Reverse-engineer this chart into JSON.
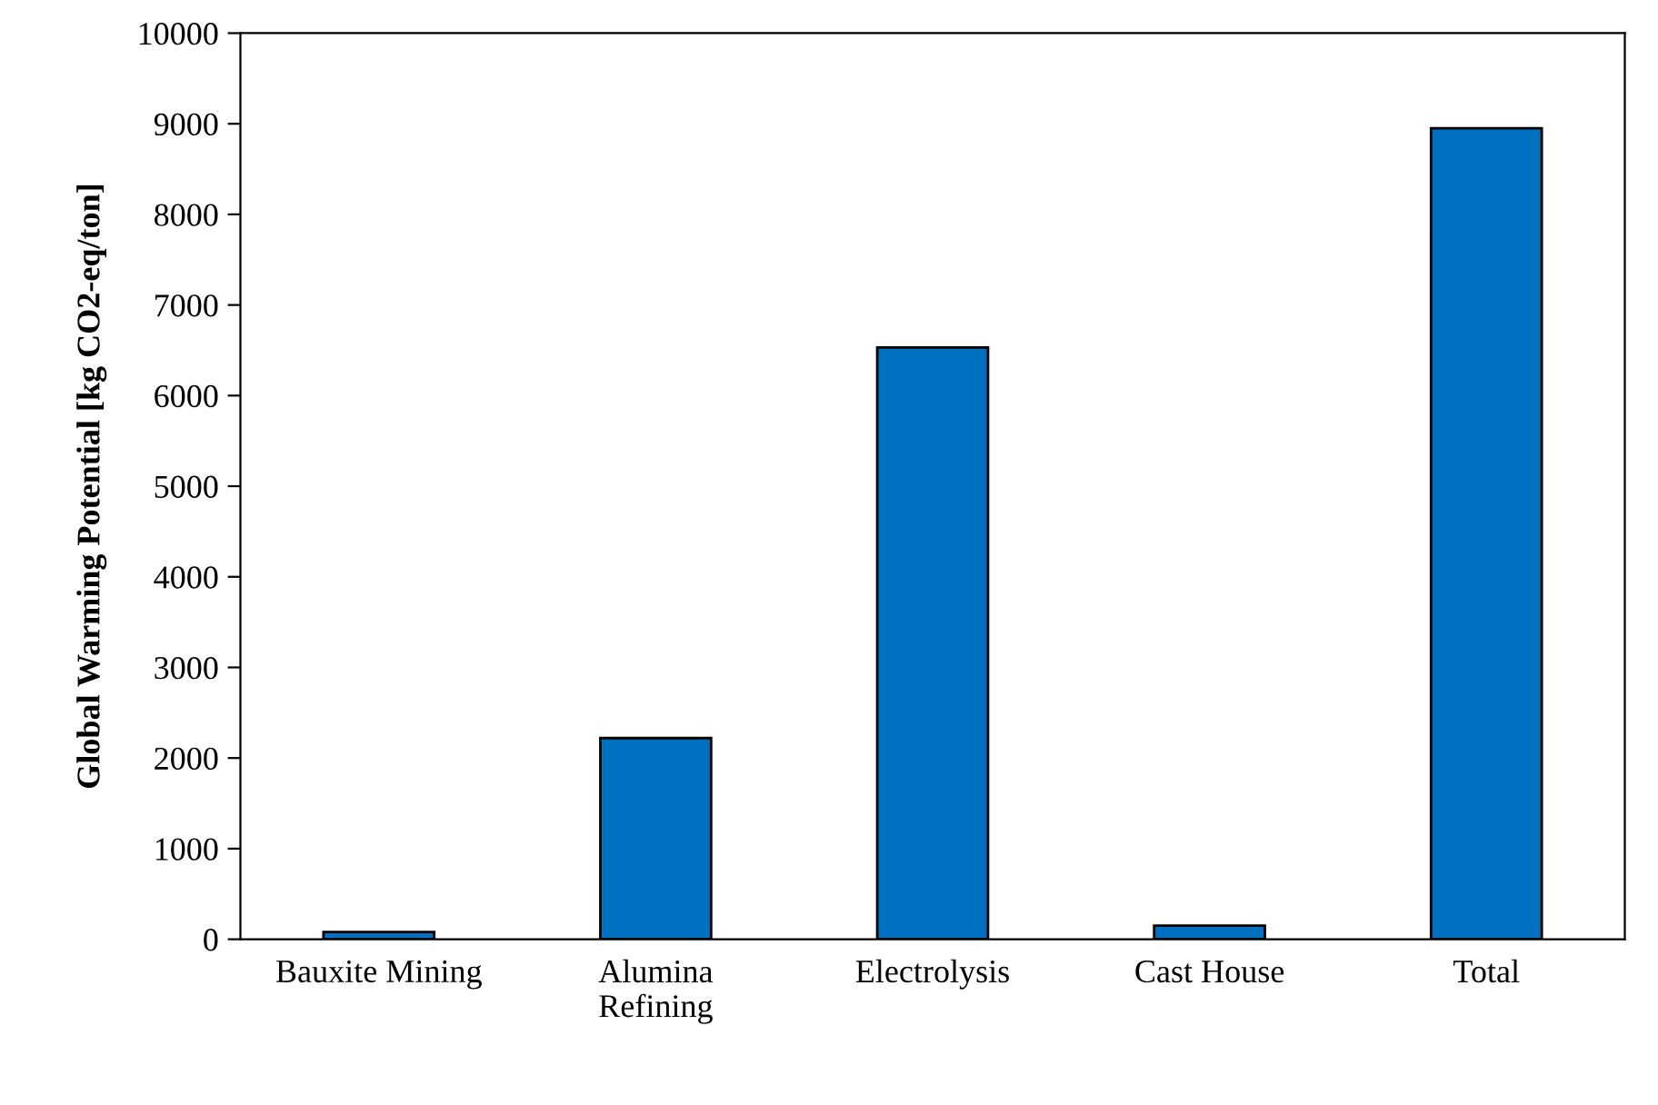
{
  "chart_data": {
    "type": "bar",
    "ylabel": "Global Warming Potential [kg CO2-eq/ton]",
    "categories": [
      "Bauxite Mining",
      "Alumina\nRefining",
      "Electrolysis",
      "Cast House",
      "Total"
    ],
    "values": [
      80,
      2220,
      6530,
      150,
      8950
    ],
    "color": "#0070c0",
    "ylim": [
      0,
      10000
    ],
    "yticks": [
      0,
      1000,
      2000,
      3000,
      4000,
      5000,
      6000,
      7000,
      8000,
      9000,
      10000
    ],
    "grid": false
  }
}
